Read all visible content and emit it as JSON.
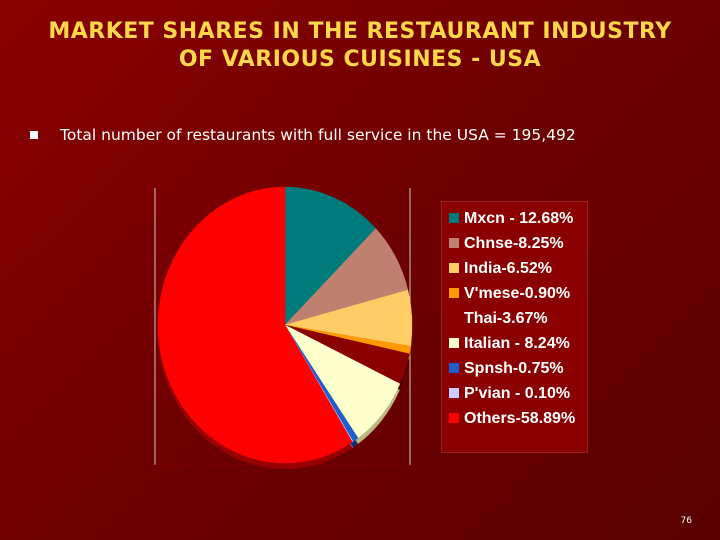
{
  "slide": {
    "title_line1": "MARKET SHARES IN THE RESTAURANT INDUSTRY",
    "title_line2": "OF  VARIOUS CUISINES - USA",
    "bullet_text": "Total number of restaurants with full service in the USA = 195,492",
    "page_number": "76"
  },
  "chart_data": {
    "type": "pie",
    "title": "",
    "legend_position": "right",
    "slices": [
      {
        "label": "Mxcn - 12.68%",
        "value": 12.68,
        "color": "#007b7b",
        "sideColor": "#004a4a"
      },
      {
        "label": "Chnse-8.25%",
        "value": 8.25,
        "color": "#c08070",
        "sideColor": "#7a4a40"
      },
      {
        "label": "India-6.52%",
        "value": 6.52,
        "color": "#ffcc66",
        "sideColor": "#b08030"
      },
      {
        "label": "V'mese-0.90%",
        "value": 0.9,
        "color": "#ff9900",
        "sideColor": "#a05a00"
      },
      {
        "label": "Thai-3.67%",
        "value": 3.67,
        "color": "#8a0000",
        "sideColor": "#4a0000"
      },
      {
        "label": "Italian - 8.24%",
        "value": 8.24,
        "color": "#ffffcc",
        "sideColor": "#b8b880"
      },
      {
        "label": "Spnsh-0.75%",
        "value": 0.75,
        "color": "#1f5fcc",
        "sideColor": "#103070"
      },
      {
        "label": "P'vian - 0.10%",
        "value": 0.1,
        "color": "#ccccff",
        "sideColor": "#8888aa"
      },
      {
        "label": "Others-58.89%",
        "value": 58.89,
        "color": "#ff0000",
        "sideColor": "#990000"
      }
    ]
  }
}
